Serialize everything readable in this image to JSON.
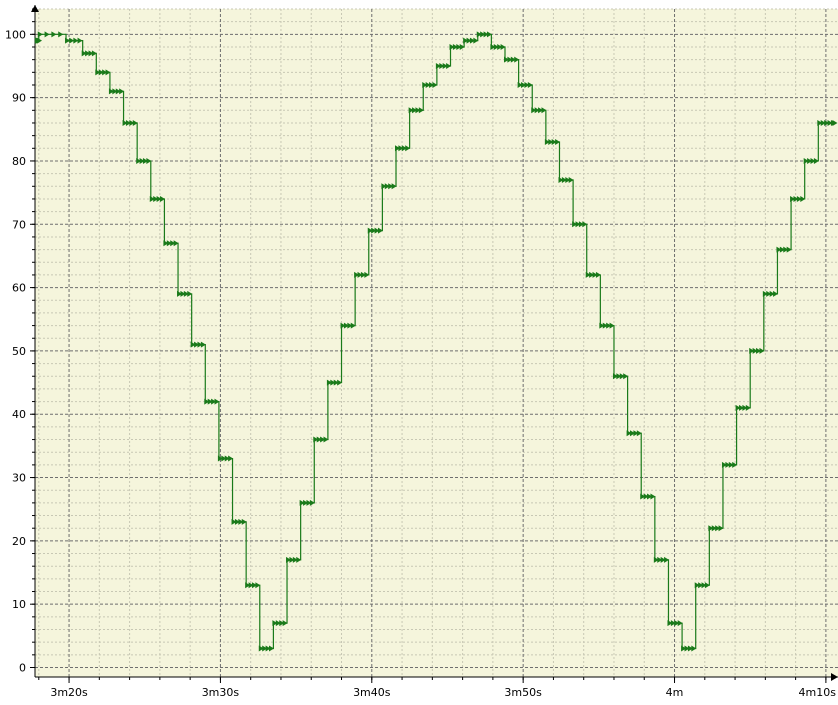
{
  "chart_data": {
    "type": "line",
    "step": true,
    "x_unit": "seconds",
    "xlim": [
      197.75,
      250.8
    ],
    "ylim": [
      -1.5,
      104
    ],
    "x_tick_values": [
      200,
      210,
      220,
      230,
      240,
      250
    ],
    "x_tick_labels": [
      "3m20s",
      "3m30s",
      "3m40s",
      "3m50s",
      "4m",
      "4m10s"
    ],
    "y_tick_values": [
      0,
      10,
      20,
      30,
      40,
      50,
      60,
      70,
      80,
      90,
      100
    ],
    "y_tick_labels": [
      "0",
      "10",
      "20",
      "30",
      "40",
      "50",
      "60",
      "70",
      "80",
      "90",
      "100"
    ],
    "grid": true,
    "legend": "none",
    "series": [
      {
        "x": [
          197.8,
          198.0,
          199.8,
          200.9,
          201.8,
          202.7,
          203.6,
          204.5,
          205.4,
          206.3,
          207.2,
          208.1,
          209.0,
          209.9,
          210.8,
          211.7,
          212.6,
          213.5,
          214.4,
          215.3,
          216.2,
          217.1,
          218.0,
          218.9,
          219.8,
          220.7,
          221.6,
          222.5,
          223.4,
          224.3,
          225.2,
          226.1,
          227.0,
          227.9,
          228.8,
          229.7,
          230.6,
          231.5,
          232.4,
          233.3,
          234.2,
          235.1,
          236.0,
          236.9,
          237.8,
          238.7,
          239.6,
          240.5,
          241.4,
          242.3,
          243.2,
          244.1,
          245.0,
          245.9,
          246.8,
          247.7,
          248.6,
          249.5,
          250.4
        ],
        "y": [
          99,
          100,
          99,
          97,
          94,
          91,
          86,
          80,
          74,
          67,
          59,
          51,
          42,
          33,
          23,
          13,
          3,
          7,
          17,
          26,
          36,
          45,
          54,
          62,
          69,
          76,
          82,
          88,
          92,
          95,
          98,
          99,
          100,
          98,
          96,
          92,
          88,
          83,
          77,
          70,
          62,
          54,
          46,
          37,
          27,
          17,
          7,
          3,
          13,
          22,
          32,
          41,
          50,
          59,
          66,
          74,
          80,
          86,
          86
        ],
        "color": "#1a7a1a"
      }
    ]
  },
  "colors": {
    "plot_background": "#f5f5dc",
    "grid_minor": "#c8c8b4",
    "grid_major": "#6e6e6e",
    "series": "#1a7a1a"
  }
}
